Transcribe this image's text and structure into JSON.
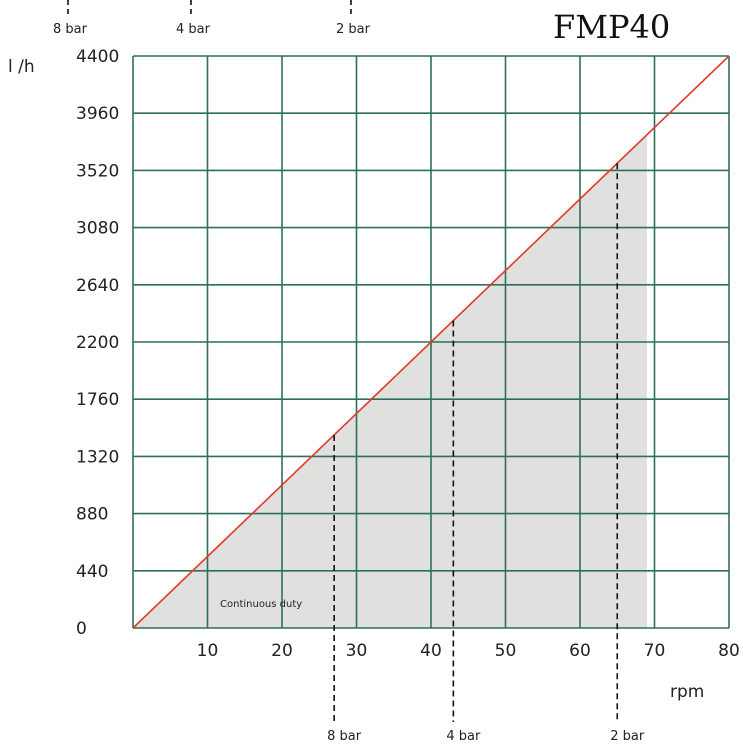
{
  "chart_data": {
    "type": "line",
    "title": "FMP40",
    "xlabel": "rpm",
    "ylabel": "l /h",
    "xlim": [
      0,
      80
    ],
    "ylim": [
      0,
      4400
    ],
    "x_ticks": [
      0,
      10,
      20,
      30,
      40,
      50,
      60,
      70,
      80
    ],
    "x_tick_labels": [
      "10",
      "20",
      "30",
      "40",
      "50",
      "60",
      "70",
      "80"
    ],
    "y_ticks": [
      0,
      440,
      880,
      1320,
      1760,
      2200,
      2640,
      3080,
      3520,
      3960,
      4400
    ],
    "y_tick_labels": [
      "0",
      "440",
      "880",
      "1320",
      "1760",
      "2200",
      "2640",
      "3080",
      "3520",
      "3960",
      "4400"
    ],
    "grid": true,
    "series": [
      {
        "x": [
          0,
          80
        ],
        "y": [
          0,
          4400
        ]
      }
    ],
    "shaded_region": {
      "label": "Continuous duty",
      "x_max": 69,
      "polygon": [
        [
          0,
          0
        ],
        [
          69,
          3795
        ],
        [
          69,
          0
        ]
      ]
    },
    "pressure_markers": [
      {
        "label": "8 bar",
        "rpm": 27,
        "flow": 1485
      },
      {
        "label": "4 bar",
        "rpm": 43,
        "flow": 2365
      },
      {
        "label": "2 bar",
        "rpm": 65,
        "flow": 3575
      }
    ],
    "top_scale_labels": [
      "8 bar",
      "4 bar",
      "2 bar"
    ],
    "colors": {
      "grid": "#2f6f5a",
      "line": "#e03a2a",
      "fill": "#e0e0de",
      "dash": "#111111"
    }
  }
}
